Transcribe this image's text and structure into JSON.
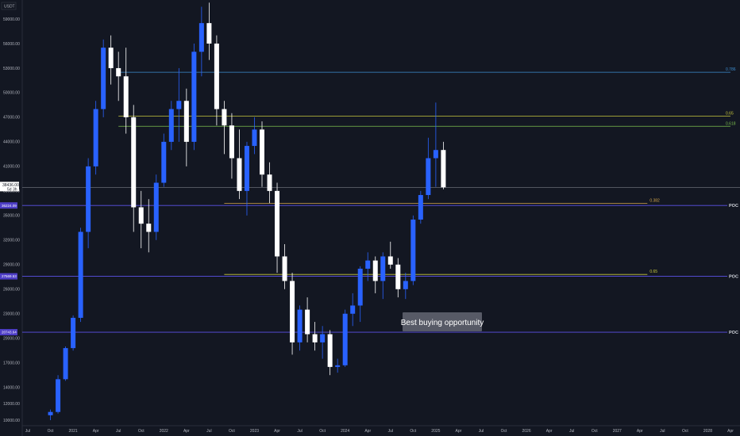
{
  "header": {
    "currency": "USDT"
  },
  "annotation": {
    "text": "Best buying opportunity"
  },
  "price_tags": {
    "current_price": "38436.00",
    "current_time": "5d 3h",
    "poc_upper": "36224.09",
    "poc_middle": "27569.53",
    "poc_lower": "20743.64"
  },
  "chart_data": {
    "type": "candlestick",
    "title": "",
    "xlabel": "",
    "ylabel": "",
    "currency": "USDT",
    "x_ticks": [
      "Jul",
      "Oct",
      "2021",
      "Apr",
      "Jul",
      "Oct",
      "2022",
      "Apr",
      "Jul",
      "Oct",
      "2023",
      "Apr",
      "Jul",
      "Oct",
      "2024",
      "Apr",
      "Jul",
      "Oct",
      "2025",
      "Apr",
      "Jul",
      "Oct",
      "2026",
      "Apr",
      "Jul",
      "Oct",
      "2027",
      "Apr",
      "Jul",
      "Oct",
      "2028",
      "Apr"
    ],
    "y_ticks": [
      "59000.00",
      "56000.00",
      "53000.00",
      "50000.00",
      "47000.00",
      "44000.00",
      "41000.00",
      "38000.00",
      "35000.00",
      "32000.00",
      "29000.00",
      "26000.00",
      "23000.00",
      "20000.00",
      "17000.00",
      "14000.00",
      "12000.00",
      "10000.00"
    ],
    "ylim": [
      9500,
      62000
    ],
    "candles": [
      {
        "t": "2020-10",
        "o": 10600,
        "h": 11300,
        "l": 10000,
        "c": 11000
      },
      {
        "t": "2020-11",
        "o": 11000,
        "h": 15500,
        "l": 10800,
        "c": 15000
      },
      {
        "t": "2020-12",
        "o": 15000,
        "h": 19000,
        "l": 14800,
        "c": 18800
      },
      {
        "t": "2021-01",
        "o": 18800,
        "h": 22800,
        "l": 18500,
        "c": 22500
      },
      {
        "t": "2021-02",
        "o": 22500,
        "h": 33500,
        "l": 22000,
        "c": 33000
      },
      {
        "t": "2021-03",
        "o": 33000,
        "h": 42000,
        "l": 31000,
        "c": 41000
      },
      {
        "t": "2021-04",
        "o": 41000,
        "h": 49000,
        "l": 40000,
        "c": 48000
      },
      {
        "t": "2021-05",
        "o": 48000,
        "h": 56500,
        "l": 47000,
        "c": 55500
      },
      {
        "t": "2021-06",
        "o": 55500,
        "h": 57000,
        "l": 51000,
        "c": 53000
      },
      {
        "t": "2021-07",
        "o": 53000,
        "h": 55000,
        "l": 49000,
        "c": 52000
      },
      {
        "t": "2021-08",
        "o": 52000,
        "h": 55500,
        "l": 45000,
        "c": 47000
      },
      {
        "t": "2021-09",
        "o": 47000,
        "h": 48500,
        "l": 33000,
        "c": 36000
      },
      {
        "t": "2021-10",
        "o": 36000,
        "h": 38000,
        "l": 31000,
        "c": 34000
      },
      {
        "t": "2021-11",
        "o": 34000,
        "h": 37000,
        "l": 30500,
        "c": 33000
      },
      {
        "t": "2021-12",
        "o": 33000,
        "h": 40000,
        "l": 32000,
        "c": 39000
      },
      {
        "t": "2022-01",
        "o": 39000,
        "h": 45000,
        "l": 38500,
        "c": 44000
      },
      {
        "t": "2022-02",
        "o": 44000,
        "h": 49000,
        "l": 43000,
        "c": 48000
      },
      {
        "t": "2022-03",
        "o": 48000,
        "h": 53000,
        "l": 44000,
        "c": 49000
      },
      {
        "t": "2022-04",
        "o": 49000,
        "h": 50500,
        "l": 41000,
        "c": 44000
      },
      {
        "t": "2022-05",
        "o": 44000,
        "h": 56000,
        "l": 43000,
        "c": 55000
      },
      {
        "t": "2022-06",
        "o": 55000,
        "h": 60500,
        "l": 52000,
        "c": 58500
      },
      {
        "t": "2022-07",
        "o": 58500,
        "h": 61000,
        "l": 54000,
        "c": 56000
      },
      {
        "t": "2022-08",
        "o": 56000,
        "h": 57000,
        "l": 46000,
        "c": 48000
      },
      {
        "t": "2022-09",
        "o": 48000,
        "h": 49000,
        "l": 42500,
        "c": 46000
      },
      {
        "t": "2022-10",
        "o": 46000,
        "h": 47500,
        "l": 39500,
        "c": 42000
      },
      {
        "t": "2022-11",
        "o": 42000,
        "h": 45500,
        "l": 37000,
        "c": 38000
      },
      {
        "t": "2022-12",
        "o": 38000,
        "h": 44000,
        "l": 35000,
        "c": 43500
      },
      {
        "t": "2023-01",
        "o": 43500,
        "h": 47000,
        "l": 42500,
        "c": 45500
      },
      {
        "t": "2023-02",
        "o": 45500,
        "h": 46500,
        "l": 38500,
        "c": 40000
      },
      {
        "t": "2023-03",
        "o": 40000,
        "h": 41500,
        "l": 36500,
        "c": 38000
      },
      {
        "t": "2023-04",
        "o": 38000,
        "h": 39000,
        "l": 28000,
        "c": 30000
      },
      {
        "t": "2023-05",
        "o": 30000,
        "h": 31500,
        "l": 26000,
        "c": 27000
      },
      {
        "t": "2023-06",
        "o": 27000,
        "h": 28000,
        "l": 18000,
        "c": 19500
      },
      {
        "t": "2023-07",
        "o": 19500,
        "h": 24000,
        "l": 18500,
        "c": 23500
      },
      {
        "t": "2023-08",
        "o": 23500,
        "h": 25000,
        "l": 19500,
        "c": 20500
      },
      {
        "t": "2023-09",
        "o": 20500,
        "h": 22000,
        "l": 18500,
        "c": 19500
      },
      {
        "t": "2023-10",
        "o": 19500,
        "h": 21500,
        "l": 17500,
        "c": 20500
      },
      {
        "t": "2023-11",
        "o": 20500,
        "h": 21000,
        "l": 15500,
        "c": 16500
      },
      {
        "t": "2023-12",
        "o": 16500,
        "h": 17500,
        "l": 15800,
        "c": 16700
      },
      {
        "t": "2024-01",
        "o": 16700,
        "h": 23500,
        "l": 16500,
        "c": 23000
      },
      {
        "t": "2024-02",
        "o": 23000,
        "h": 25500,
        "l": 21500,
        "c": 24000
      },
      {
        "t": "2024-03",
        "o": 24000,
        "h": 28800,
        "l": 22000,
        "c": 28500
      },
      {
        "t": "2024-04",
        "o": 28500,
        "h": 30500,
        "l": 27000,
        "c": 29500
      },
      {
        "t": "2024-05",
        "o": 29500,
        "h": 30000,
        "l": 25500,
        "c": 27000
      },
      {
        "t": "2024-06",
        "o": 27000,
        "h": 30500,
        "l": 24800,
        "c": 30000
      },
      {
        "t": "2024-07",
        "o": 30000,
        "h": 31800,
        "l": 28500,
        "c": 29000
      },
      {
        "t": "2024-08",
        "o": 29000,
        "h": 29800,
        "l": 25000,
        "c": 26000
      },
      {
        "t": "2024-09",
        "o": 26000,
        "h": 28000,
        "l": 24800,
        "c": 27000
      },
      {
        "t": "2024-10",
        "o": 27000,
        "h": 35000,
        "l": 26500,
        "c": 34500
      },
      {
        "t": "2024-11",
        "o": 34500,
        "h": 38000,
        "l": 34000,
        "c": 37500
      },
      {
        "t": "2024-12",
        "o": 37500,
        "h": 44500,
        "l": 37000,
        "c": 42000
      },
      {
        "t": "2025-01",
        "o": 42000,
        "h": 48800,
        "l": 38500,
        "c": 43000
      },
      {
        "t": "2025-02",
        "o": 43000,
        "h": 44000,
        "l": 38200,
        "c": 38436
      }
    ],
    "levels": [
      {
        "name": "0.786",
        "price": 52500,
        "color": "#3d8fd1",
        "x_start": "2021-07",
        "x_end": "2028-04"
      },
      {
        "name": "0.65",
        "price": 47150,
        "color": "#c8c83c",
        "x_start": "2021-07",
        "x_end": "2028-04"
      },
      {
        "name": "0.618",
        "price": 45900,
        "color": "#7cbf4e",
        "x_start": "2021-07",
        "x_end": "2028-04"
      },
      {
        "name": "0.382",
        "price": 36500,
        "color": "#d4a64a",
        "x_start": "2022-09",
        "x_end": "2027-05"
      },
      {
        "name": "0.65",
        "price": 27800,
        "color": "#c8c83c",
        "x_start": "2022-09",
        "x_end": "2027-05"
      }
    ],
    "poc_levels": [
      {
        "label": "POC",
        "price": 36224.09,
        "tag": "36224.09"
      },
      {
        "label": "POC",
        "price": 27569.53,
        "tag": "27569.53"
      },
      {
        "label": "POC",
        "price": 20743.64,
        "tag": "20743.64"
      }
    ],
    "current_price": 38436.0,
    "grid": false
  },
  "colors": {
    "background": "#131722",
    "bull": "#2962ff",
    "bear": "#ffffff",
    "text": "#b2b5be",
    "poc_line": "#5c52e8",
    "tag_bg": "#4e3ec7",
    "note_bg": "#575a66"
  }
}
